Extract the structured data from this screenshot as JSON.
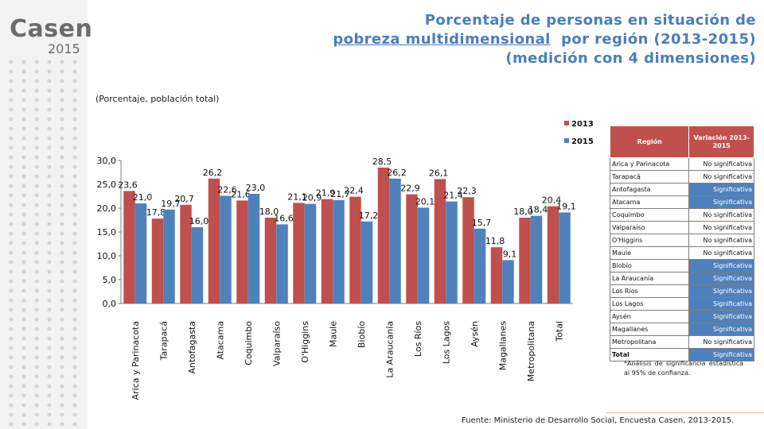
{
  "logo": {
    "name": "Casen",
    "year": "2015"
  },
  "title": {
    "line1": "Porcentaje de personas en situación de",
    "line2_link": "pobreza multidimensional",
    "line2_rest": "  por región (2013-2015)",
    "line3": "(medición con 4 dimensiones)"
  },
  "subtitle": "(Porcentaje, población total)",
  "chart_data": {
    "type": "bar",
    "categories": [
      "Arica y Parinacota",
      "Tarapacá",
      "Antofagasta",
      "Atacama",
      "Coquimbo",
      "Valparaíso",
      "O'Higgins",
      "Maule",
      "Biobío",
      "La Araucanía",
      "Los Ríos",
      "Los Lagos",
      "Aysén",
      "Magallanes",
      "Metropolitana",
      "Total"
    ],
    "series": [
      {
        "name": "2013",
        "color": "#c0504d",
        "values": [
          23.6,
          17.8,
          20.7,
          26.2,
          21.6,
          18.0,
          21.1,
          21.9,
          22.4,
          28.5,
          22.9,
          26.1,
          22.3,
          11.8,
          18.0,
          20.4
        ],
        "labels": [
          "23,6",
          "17,8",
          "20,7",
          "26,2",
          "21,6",
          "18,0",
          "21,1",
          "21,9",
          "22,4",
          "28,5",
          "22,9",
          "26,1",
          "22,3",
          "11,8",
          "18,0",
          "20,4"
        ]
      },
      {
        "name": "2015",
        "color": "#4f81bd",
        "values": [
          21.0,
          19.7,
          16.0,
          22.6,
          23.0,
          16.6,
          20.9,
          21.7,
          17.2,
          26.2,
          20.1,
          21.4,
          15.7,
          9.1,
          18.4,
          19.1
        ],
        "labels": [
          "21,0",
          "19,7",
          "16,0",
          "22,6",
          "23,0",
          "16,6",
          "20,9",
          "21,7",
          "17,2",
          "26,2",
          "20,1",
          "21,4",
          "15,7",
          "9,1",
          "18,4",
          "19,1"
        ]
      }
    ],
    "yticks": [
      "0,0",
      "5,0",
      "10,0",
      "15,0",
      "20,0",
      "25,0",
      "30,0"
    ],
    "ylim": [
      0,
      30
    ],
    "legend": "top-right"
  },
  "table": {
    "headers": [
      "Región",
      "Variación 2013-2015"
    ],
    "rows": [
      [
        "Arica y Parinacota",
        "No significativa"
      ],
      [
        "Tarapacá",
        "No significativa"
      ],
      [
        "Antofagasta",
        "Significativa"
      ],
      [
        "Atacama",
        "Significativa"
      ],
      [
        "Coquimbo",
        "No significativa"
      ],
      [
        "Valparaíso",
        "No significativa"
      ],
      [
        "O'Higgins",
        "No significativa"
      ],
      [
        "Maule",
        "No significativa"
      ],
      [
        "Biobío",
        "Significativa"
      ],
      [
        "La Araucanía",
        "Significativa"
      ],
      [
        "Los Ríos",
        "Significativa"
      ],
      [
        "Los Lagos",
        "Significativa"
      ],
      [
        "Aysén",
        "Significativa"
      ],
      [
        "Magallanes",
        "Significativa"
      ],
      [
        "Metropolitana",
        "No significativa"
      ],
      [
        "Total",
        "Significativa"
      ]
    ],
    "note": "*Análisis de significancia estadística al 95% de confianza."
  },
  "source": "Fuente: Ministerio de Desarrollo Social, Encuesta Casen, 2013-2015."
}
